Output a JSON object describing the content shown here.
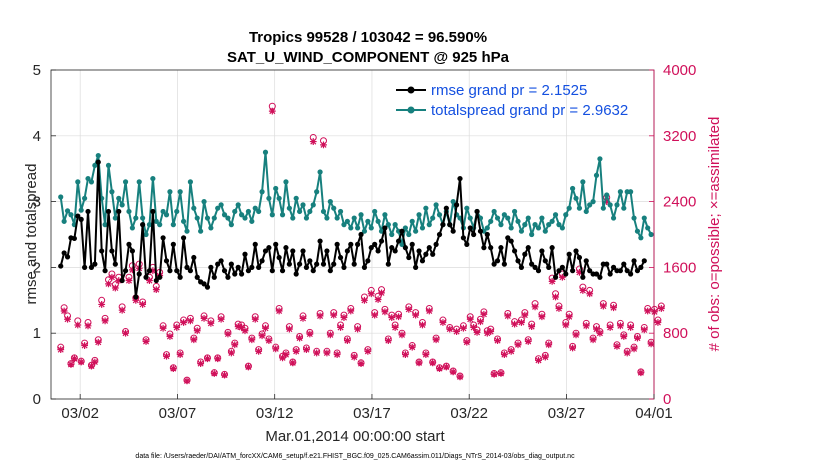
{
  "chart_data": {
    "type": "line",
    "title_line1": "Tropics 99528 / 103042 = 96.590%",
    "title_line2": "SAT_U_WIND_COMPONENT @ 925 hPa",
    "xlabel": "Mar.01,2014 00:00:00 start",
    "ylabel_left": "rmse and totalspread",
    "ylabel_right": "# of obs: o=possible; ×=assimilated",
    "xlim": [
      0.5,
      31.5
    ],
    "ylim_left": [
      0,
      5
    ],
    "ylim_right": [
      0,
      4000
    ],
    "grid": true,
    "x_ticks": [
      {
        "value": 2,
        "label": "03/02"
      },
      {
        "value": 7,
        "label": "03/07"
      },
      {
        "value": 12,
        "label": "03/12"
      },
      {
        "value": 17,
        "label": "03/17"
      },
      {
        "value": 22,
        "label": "03/22"
      },
      {
        "value": 27,
        "label": "03/27"
      },
      {
        "value": 32,
        "label": "04/01"
      }
    ],
    "y_ticks_left": [
      "0",
      "1",
      "2",
      "3",
      "4",
      "5"
    ],
    "y_ticks_right": [
      "0",
      "800",
      "1600",
      "2400",
      "3200",
      "4000"
    ],
    "colors": {
      "rmse": "#000000",
      "spread": "#17807e",
      "obs": "#d0105a",
      "legend_text": "#1450e0",
      "grid": "#dcdcdc"
    },
    "legend": [
      {
        "label": "rmse grand pr = 2.1525"
      },
      {
        "label": "totalspread grand pr = 2.9632"
      }
    ],
    "legend_position": "top-right",
    "series": [
      {
        "name": "rmse",
        "axis": "left",
        "values": [
          2.02,
          2.22,
          2.16,
          2.45,
          2.44,
          2.78,
          2.73,
          2.0,
          2.85,
          2.0,
          2.05,
          3.6,
          2.25,
          1.95,
          2.85,
          2.25,
          2.05,
          2.85,
          1.8,
          1.95,
          2.35,
          2.25,
          1.55,
          1.9,
          2.65,
          1.85,
          1.95,
          2.85,
          1.8,
          1.85,
          2.45,
          2.1,
          1.95,
          2.35,
          1.95,
          1.85,
          2.45,
          2.0,
          1.95,
          2.15,
          1.85,
          1.78,
          1.75,
          1.7,
          2.0,
          1.85,
          2.05,
          2.1,
          1.95,
          1.85,
          2.05,
          1.9,
          2.0,
          1.9,
          2.2,
          1.95,
          2.0,
          2.35,
          2.0,
          2.1,
          2.25,
          2.3,
          1.95,
          2.35,
          2.15,
          1.95,
          2.3,
          2.05,
          2.25,
          1.9,
          2.05,
          2.25,
          2.0,
          2.1,
          1.95,
          2.05,
          2.4,
          2.05,
          2.25,
          1.95,
          2.05,
          2.35,
          2.15,
          2.0,
          2.25,
          2.35,
          2.05,
          2.35,
          2.5,
          2.0,
          2.1,
          2.3,
          2.35,
          2.25,
          2.4,
          2.6,
          2.05,
          2.3,
          2.25,
          2.4,
          2.55,
          2.3,
          2.15,
          2.35,
          2.0,
          2.25,
          2.1,
          2.2,
          2.3,
          2.2,
          2.35,
          2.5,
          2.65,
          2.9,
          2.65,
          2.55,
          2.95,
          3.35,
          2.45,
          2.35,
          2.6,
          2.5,
          2.85,
          2.55,
          2.3,
          2.5,
          2.3,
          2.05,
          2.1,
          2.3,
          2.05,
          2.45,
          2.4,
          2.25,
          2.1,
          2.0,
          2.2,
          2.3,
          2.05,
          2.0,
          1.95,
          2.25,
          2.1,
          2.0,
          2.3,
          1.85,
          1.95,
          2.0,
          1.9,
          2.2,
          1.95,
          2.25,
          2.15,
          1.85,
          2.1,
          1.95,
          1.9,
          1.9,
          1.85,
          2.05,
          2.05,
          1.9,
          2.0,
          1.95,
          1.95,
          2.05,
          1.95,
          1.9,
          2.1,
          1.95,
          2.0,
          2.1
        ]
      },
      {
        "name": "totalspread",
        "axis": "left",
        "values": [
          3.07,
          2.7,
          2.86,
          2.8,
          2.65,
          3.3,
          2.87,
          3.05,
          3.35,
          3.3,
          3.55,
          3.7,
          3.05,
          2.65,
          3.55,
          3.15,
          2.75,
          3.05,
          2.95,
          3.3,
          2.85,
          2.6,
          2.75,
          3.3,
          2.75,
          2.5,
          2.65,
          3.35,
          2.7,
          2.65,
          2.85,
          2.8,
          3.15,
          2.65,
          2.85,
          3.15,
          2.7,
          2.55,
          3.3,
          2.9,
          2.75,
          2.55,
          3.0,
          2.75,
          2.6,
          2.75,
          2.9,
          2.95,
          2.8,
          2.75,
          2.65,
          2.85,
          2.95,
          2.8,
          2.75,
          2.85,
          2.7,
          2.9,
          2.85,
          3.15,
          3.75,
          3.05,
          2.8,
          3.2,
          3.05,
          2.8,
          3.3,
          2.9,
          2.75,
          3.05,
          2.85,
          2.95,
          2.75,
          2.85,
          2.95,
          3.15,
          3.45,
          2.85,
          2.75,
          3.0,
          2.9,
          2.75,
          2.85,
          2.65,
          2.7,
          2.6,
          2.75,
          2.6,
          2.8,
          2.55,
          2.7,
          2.6,
          2.85,
          2.7,
          2.55,
          2.8,
          2.65,
          2.5,
          2.65,
          2.55,
          2.35,
          2.6,
          2.5,
          2.7,
          2.55,
          2.8,
          2.6,
          2.9,
          2.65,
          2.75,
          2.95,
          2.8,
          2.65,
          2.85,
          2.65,
          3.0,
          2.8,
          2.75,
          2.6,
          2.9,
          2.75,
          2.6,
          2.85,
          2.75,
          2.55,
          2.6,
          2.7,
          2.85,
          2.75,
          2.65,
          2.8,
          2.75,
          2.6,
          2.85,
          2.7,
          2.55,
          2.65,
          2.75,
          2.5,
          2.65,
          2.6,
          2.75,
          2.55,
          2.65,
          2.7,
          2.8,
          2.65,
          2.6,
          2.8,
          2.9,
          3.2,
          3.05,
          2.9,
          3.3,
          2.85,
          2.95,
          3.0,
          3.4,
          3.65,
          2.9,
          3.1,
          2.95,
          2.75,
          2.95,
          3.15,
          2.9,
          3.15,
          3.15,
          2.75,
          2.55,
          2.45,
          2.75,
          2.6,
          2.5
        ]
      },
      {
        "name": "possible",
        "axis": "right",
        "marker": "o",
        "values": [
          630,
          1110,
          1010,
          430,
          500,
          950,
          460,
          680,
          930,
          410,
          470,
          720,
          1200,
          980,
          1450,
          1520,
          1390,
          1480,
          1120,
          820,
          1480,
          1620,
          1230,
          1640,
          1180,
          720,
          1480,
          1600,
          1370,
          1540,
          890,
          540,
          790,
          380,
          900,
          560,
          960,
          230,
          980,
          740,
          860,
          450,
          1010,
          500,
          950,
          320,
          500,
          1000,
          300,
          810,
          580,
          680,
          910,
          900,
          860,
          400,
          740,
          1000,
          600,
          790,
          890,
          730,
          3560,
          630,
          1100,
          520,
          560,
          880,
          450,
          600,
          760,
          1010,
          620,
          810,
          3180,
          580,
          1040,
          3140,
          580,
          800,
          1050,
          560,
          900,
          1020,
          730,
          1100,
          530,
          880,
          440,
          1240,
          600,
          1320,
          1050,
          1250,
          1330,
          1090,
          730,
          1020,
          900,
          1030,
          800,
          560,
          1120,
          650,
          1050,
          450,
          930,
          560,
          1100,
          450,
          740,
          380,
          960,
          400,
          870,
          340,
          850,
          280,
          890,
          710,
          1000,
          900,
          840,
          970,
          1060,
          830,
          850,
          310,
          730,
          320,
          560,
          1040,
          600,
          940,
          680,
          960,
          1050,
          720,
          910,
          1160,
          490,
          1030,
          530,
          680,
          1470,
          1280,
          1130,
          1520,
          930,
          1030,
          640,
          800,
          1580,
          1360,
          920,
          1320,
          740,
          880,
          820,
          1160,
          2450,
          900,
          1140,
          660,
          920,
          780,
          580,
          900,
          630,
          760,
          330,
          870,
          1100,
          690,
          1090,
          960,
          1130
        ]
      },
      {
        "name": "assimilated",
        "axis": "right",
        "marker": "x",
        "values": [
          600,
          1070,
          970,
          420,
          490,
          900,
          450,
          650,
          890,
          400,
          450,
          690,
          1150,
          950,
          1400,
          1480,
          1350,
          1440,
          1080,
          800,
          1440,
          1570,
          1200,
          1590,
          1150,
          700,
          1440,
          1560,
          1330,
          1500,
          860,
          520,
          760,
          370,
          870,
          540,
          930,
          220,
          950,
          720,
          830,
          430,
          980,
          490,
          920,
          310,
          490,
          970,
          290,
          790,
          560,
          660,
          880,
          870,
          830,
          390,
          720,
          970,
          580,
          770,
          860,
          710,
          3500,
          610,
          1070,
          500,
          540,
          850,
          440,
          580,
          740,
          980,
          600,
          790,
          3130,
          560,
          1010,
          3090,
          560,
          780,
          1020,
          540,
          870,
          990,
          710,
          1070,
          510,
          850,
          430,
          1200,
          580,
          1280,
          1020,
          1210,
          1290,
          1060,
          710,
          990,
          870,
          1000,
          780,
          540,
          1090,
          630,
          1020,
          440,
          900,
          540,
          1070,
          440,
          720,
          370,
          930,
          390,
          850,
          330,
          820,
          270,
          860,
          690,
          970,
          870,
          810,
          940,
          1030,
          800,
          820,
          300,
          710,
          310,
          540,
          1010,
          580,
          910,
          660,
          930,
          1020,
          700,
          880,
          1120,
          470,
          1000,
          510,
          660,
          1430,
          1240,
          1100,
          1480,
          900,
          1000,
          620,
          780,
          1540,
          1320,
          890,
          1280,
          720,
          850,
          800,
          1130,
          2400,
          870,
          1110,
          640,
          890,
          760,
          560,
          870,
          610,
          740,
          320,
          840,
          1070,
          670,
          1060,
          930,
          1100
        ]
      }
    ]
  },
  "footer": {
    "data_file": "data file: /Users/raeder/DAI/ATM_forcXX/CAM6_setup/f.e21.FHIST_BGC.f09_025.CAM6assim.011/Diags_NTrS_2014-03/obs_diag_output.nc"
  }
}
